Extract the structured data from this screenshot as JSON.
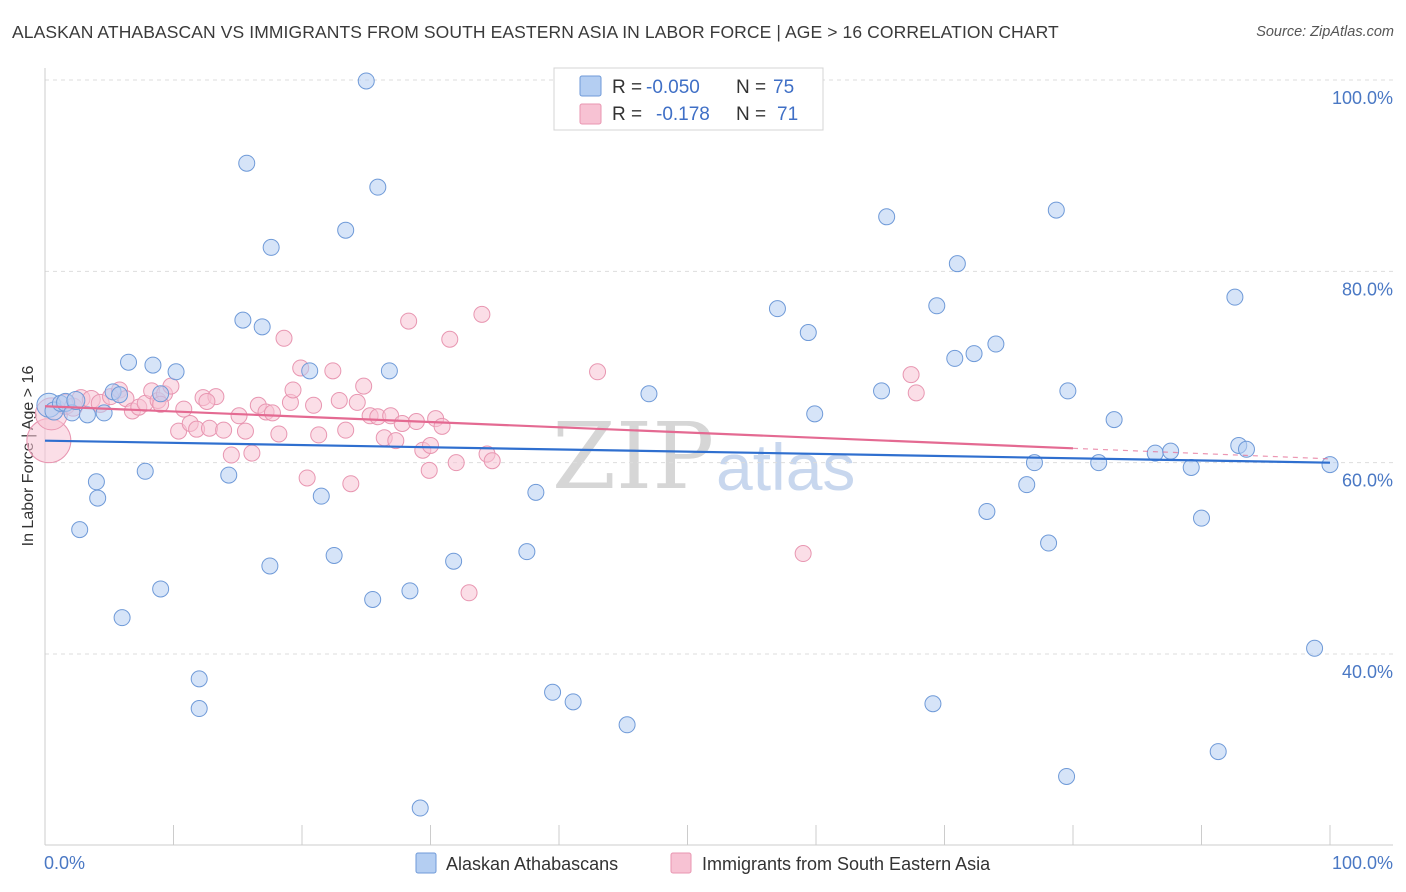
{
  "title": "ALASKAN ATHABASCAN VS IMMIGRANTS FROM SOUTH EASTERN ASIA IN LABOR FORCE | AGE > 16 CORRELATION CHART",
  "source": "Source: ZipAtlas.com",
  "watermark": {
    "zip": "ZIP",
    "atlas": "atlas"
  },
  "legend": {
    "rows": [
      {
        "r_label": "R = ",
        "r_value": "-0.050",
        "n_label": "N = ",
        "n_value": "75"
      },
      {
        "r_label": "R = ",
        "r_value": "-0.178",
        "n_label": "N = ",
        "n_value": "71"
      }
    ]
  },
  "colors": {
    "blue_fill": "#b4cef2",
    "blue_stroke": "#6f9ad8",
    "blue_line": "#2f6fcf",
    "pink_fill": "#f7c2d3",
    "pink_stroke": "#e896b1",
    "pink_line": "#e46a92",
    "grid": "#dddddd",
    "axis_label": "#4a78c4"
  },
  "chart_data": {
    "type": "scatter",
    "title": "ALASKAN ATHABASCAN VS IMMIGRANTS FROM SOUTH EASTERN ASIA IN LABOR FORCE | AGE > 16 CORRELATION CHART",
    "xlabel": "",
    "ylabel": "In Labor Force | Age > 16",
    "xlim": [
      0,
      100
    ],
    "ylim": [
      20,
      101
    ],
    "x_tick_labels": [
      "0.0%",
      "100.0%"
    ],
    "y_ticks": [
      100,
      80,
      60,
      40
    ],
    "y_tick_labels": [
      "100.0%",
      "80.0%",
      "60.0%",
      "40.0%"
    ],
    "grid": true,
    "legend_position": "top-center",
    "series": [
      {
        "name": "Alaskan Athabascans",
        "color": "#6f9ad8",
        "R": -0.05,
        "N": 75,
        "trend": {
          "x": [
            0,
            100
          ],
          "y": [
            62.3,
            60.0
          ]
        },
        "points": [
          [
            0.3,
            66.0,
            12
          ],
          [
            0.7,
            65.4,
            9
          ],
          [
            1.2,
            66.2,
            8
          ],
          [
            1.6,
            66.3,
            9
          ],
          [
            2.1,
            65.2,
            8
          ],
          [
            2.4,
            66.5,
            9
          ],
          [
            3.3,
            65.0,
            8
          ],
          [
            4.6,
            65.2,
            8
          ],
          [
            5.3,
            67.4,
            8
          ],
          [
            5.8,
            67.1,
            8
          ],
          [
            2.7,
            53.0,
            8
          ],
          [
            4.0,
            58.0,
            8
          ],
          [
            4.1,
            56.3,
            8
          ],
          [
            6.0,
            43.8,
            8
          ],
          [
            6.5,
            70.5,
            8
          ],
          [
            7.8,
            59.1,
            8
          ],
          [
            8.4,
            70.2,
            8
          ],
          [
            9.0,
            46.8,
            8
          ],
          [
            9.0,
            67.2,
            8
          ],
          [
            10.2,
            69.5,
            8
          ],
          [
            12.0,
            37.4,
            8
          ],
          [
            12.0,
            34.3,
            8
          ],
          [
            14.3,
            58.7,
            8
          ],
          [
            15.4,
            74.9,
            8
          ],
          [
            15.7,
            91.3,
            8
          ],
          [
            16.9,
            74.2,
            8
          ],
          [
            17.5,
            49.2,
            8
          ],
          [
            17.6,
            82.5,
            8
          ],
          [
            20.6,
            69.6,
            8
          ],
          [
            21.5,
            56.5,
            8
          ],
          [
            22.5,
            50.3,
            8
          ],
          [
            23.4,
            84.3,
            8
          ],
          [
            25.0,
            99.9,
            8
          ],
          [
            25.5,
            45.7,
            8
          ],
          [
            25.9,
            88.8,
            8
          ],
          [
            26.8,
            69.6,
            8
          ],
          [
            28.4,
            46.6,
            8
          ],
          [
            29.2,
            23.9,
            8
          ],
          [
            31.8,
            49.7,
            8
          ],
          [
            37.5,
            50.7,
            8
          ],
          [
            38.2,
            56.9,
            8
          ],
          [
            39.5,
            36.0,
            8
          ],
          [
            41.1,
            35.0,
            8
          ],
          [
            45.3,
            32.6,
            8
          ],
          [
            47.0,
            67.2,
            8
          ],
          [
            57.0,
            76.1,
            8
          ],
          [
            59.4,
            73.6,
            8
          ],
          [
            59.9,
            65.1,
            8
          ],
          [
            65.1,
            67.5,
            8
          ],
          [
            65.5,
            85.7,
            8
          ],
          [
            69.1,
            34.8,
            8
          ],
          [
            69.4,
            76.4,
            8
          ],
          [
            70.8,
            70.9,
            8
          ],
          [
            71.0,
            80.8,
            8
          ],
          [
            72.3,
            71.4,
            8
          ],
          [
            73.3,
            54.9,
            8
          ],
          [
            74.0,
            72.4,
            8
          ],
          [
            76.4,
            57.7,
            8
          ],
          [
            77.0,
            60.0,
            8
          ],
          [
            78.1,
            51.6,
            8
          ],
          [
            78.7,
            86.4,
            8
          ],
          [
            79.5,
            27.2,
            8
          ],
          [
            79.6,
            67.5,
            8
          ],
          [
            82.0,
            60.0,
            8
          ],
          [
            83.2,
            64.5,
            8
          ],
          [
            86.4,
            61.0,
            8
          ],
          [
            87.6,
            61.2,
            8
          ],
          [
            89.2,
            59.5,
            8
          ],
          [
            90.0,
            54.2,
            8
          ],
          [
            91.3,
            29.8,
            8
          ],
          [
            92.6,
            77.3,
            8
          ],
          [
            92.9,
            61.8,
            8
          ],
          [
            93.5,
            61.4,
            8
          ],
          [
            98.8,
            40.6,
            8
          ],
          [
            100.0,
            59.8,
            8
          ]
        ]
      },
      {
        "name": "Immigrants from South Eastern Asia",
        "color": "#e896b1",
        "R": -0.178,
        "N": 71,
        "trend": {
          "x": [
            0,
            80
          ],
          "y": [
            65.9,
            61.5
          ]
        },
        "trend_dashed": {
          "x": [
            80,
            100
          ],
          "y": [
            61.5,
            60.4
          ]
        },
        "points": [
          [
            0.3,
            62.3,
            22
          ],
          [
            0.5,
            65.1,
            16
          ],
          [
            1.6,
            66.1,
            10
          ],
          [
            2.2,
            65.8,
            9
          ],
          [
            2.8,
            66.7,
            9
          ],
          [
            3.6,
            66.6,
            9
          ],
          [
            4.3,
            66.2,
            9
          ],
          [
            5.1,
            66.9,
            8
          ],
          [
            5.8,
            67.6,
            8
          ],
          [
            6.3,
            66.7,
            8
          ],
          [
            6.8,
            65.4,
            8
          ],
          [
            7.3,
            65.8,
            8
          ],
          [
            7.8,
            66.2,
            8
          ],
          [
            8.3,
            67.5,
            8
          ],
          [
            8.8,
            66.5,
            8
          ],
          [
            9.3,
            67.2,
            8
          ],
          [
            9.8,
            68.0,
            8
          ],
          [
            10.4,
            63.3,
            8
          ],
          [
            10.8,
            65.6,
            8
          ],
          [
            11.3,
            64.1,
            8
          ],
          [
            11.8,
            63.5,
            8
          ],
          [
            12.3,
            66.8,
            8
          ],
          [
            12.8,
            63.6,
            8
          ],
          [
            13.3,
            66.9,
            8
          ],
          [
            13.9,
            63.4,
            8
          ],
          [
            14.5,
            60.8,
            8
          ],
          [
            15.1,
            64.9,
            8
          ],
          [
            15.6,
            63.3,
            8
          ],
          [
            16.1,
            61.0,
            8
          ],
          [
            16.6,
            66.0,
            8
          ],
          [
            17.2,
            65.3,
            8
          ],
          [
            17.7,
            65.2,
            8
          ],
          [
            18.2,
            63.0,
            8
          ],
          [
            18.6,
            73.0,
            8
          ],
          [
            19.1,
            66.3,
            8
          ],
          [
            19.3,
            67.6,
            8
          ],
          [
            19.9,
            69.9,
            8
          ],
          [
            20.4,
            58.4,
            8
          ],
          [
            20.9,
            66.0,
            8
          ],
          [
            21.3,
            62.9,
            8
          ],
          [
            22.4,
            69.6,
            8
          ],
          [
            22.9,
            66.5,
            8
          ],
          [
            23.4,
            63.4,
            8
          ],
          [
            23.8,
            57.8,
            8
          ],
          [
            24.3,
            66.3,
            8
          ],
          [
            24.8,
            68.0,
            8
          ],
          [
            25.3,
            64.9,
            8
          ],
          [
            25.9,
            64.8,
            8
          ],
          [
            26.4,
            62.6,
            8
          ],
          [
            26.9,
            64.9,
            8
          ],
          [
            27.3,
            62.3,
            8
          ],
          [
            27.8,
            64.1,
            8
          ],
          [
            28.3,
            74.8,
            8
          ],
          [
            28.9,
            64.3,
            8
          ],
          [
            29.4,
            61.3,
            8
          ],
          [
            29.9,
            59.2,
            8
          ],
          [
            30.4,
            64.6,
            8
          ],
          [
            30.9,
            63.8,
            8
          ],
          [
            31.5,
            72.9,
            8
          ],
          [
            32.0,
            60.0,
            8
          ],
          [
            33.0,
            46.4,
            8
          ],
          [
            34.0,
            75.5,
            8
          ],
          [
            34.4,
            60.9,
            8
          ],
          [
            34.8,
            60.2,
            8
          ],
          [
            43.0,
            69.5,
            8
          ],
          [
            59.0,
            50.5,
            8
          ],
          [
            67.4,
            69.2,
            8
          ],
          [
            67.8,
            67.3,
            8
          ],
          [
            12.6,
            66.4,
            8
          ],
          [
            9.0,
            66.1,
            8
          ],
          [
            30.0,
            61.8,
            8
          ]
        ]
      }
    ]
  },
  "bottom_legend": {
    "items": [
      {
        "label": "Alaskan Athabascans"
      },
      {
        "label": "Immigrants from South Eastern Asia"
      }
    ]
  }
}
